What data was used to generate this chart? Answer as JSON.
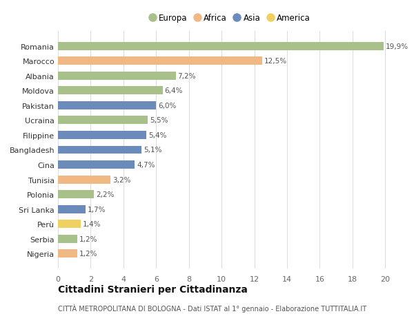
{
  "countries": [
    "Romania",
    "Marocco",
    "Albania",
    "Moldova",
    "Pakistan",
    "Ucraina",
    "Filippine",
    "Bangladesh",
    "Cina",
    "Tunisia",
    "Polonia",
    "Sri Lanka",
    "Perù",
    "Serbia",
    "Nigeria"
  ],
  "values": [
    19.9,
    12.5,
    7.2,
    6.4,
    6.0,
    5.5,
    5.4,
    5.1,
    4.7,
    3.2,
    2.2,
    1.7,
    1.4,
    1.2,
    1.2
  ],
  "labels": [
    "19,9%",
    "12,5%",
    "7,2%",
    "6,4%",
    "6,0%",
    "5,5%",
    "5,4%",
    "5,1%",
    "4,7%",
    "3,2%",
    "2,2%",
    "1,7%",
    "1,4%",
    "1,2%",
    "1,2%"
  ],
  "continents": [
    "Europa",
    "Africa",
    "Europa",
    "Europa",
    "Asia",
    "Europa",
    "Asia",
    "Asia",
    "Asia",
    "Africa",
    "Europa",
    "Asia",
    "America",
    "Europa",
    "Africa"
  ],
  "continent_colors": {
    "Europa": "#a8c08a",
    "Africa": "#f0b883",
    "Asia": "#6b8cba",
    "America": "#f0d060"
  },
  "legend_order": [
    "Europa",
    "Africa",
    "Asia",
    "America"
  ],
  "title": "Cittadini Stranieri per Cittadinanza",
  "subtitle": "CITTÀ METROPOLITANA DI BOLOGNA - Dati ISTAT al 1° gennaio - Elaborazione TUTTITALIA.IT",
  "xlim": [
    0,
    21
  ],
  "xticks": [
    0,
    2,
    4,
    6,
    8,
    10,
    12,
    14,
    16,
    18,
    20
  ],
  "bg_color": "#ffffff",
  "grid_color": "#dddddd",
  "bar_height": 0.55,
  "label_fontsize": 7.5,
  "ytick_fontsize": 8.0,
  "xtick_fontsize": 8.0,
  "legend_fontsize": 8.5,
  "title_fontsize": 10,
  "subtitle_fontsize": 7.0
}
